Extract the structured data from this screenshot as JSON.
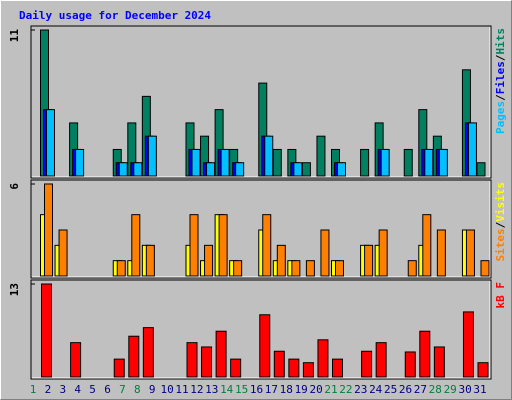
{
  "legend_separator": "/",
  "chart_data": [
    {
      "type": "bar",
      "title": "Daily usage for December 2024",
      "ylim": [
        0,
        11
      ],
      "yticks": [
        11
      ],
      "series": [
        {
          "name": "Hits",
          "color": "#008060",
          "values": [
            11,
            0,
            4,
            0,
            0,
            2,
            4,
            6,
            0,
            0,
            4,
            3,
            5,
            2,
            0,
            7,
            2,
            2,
            1,
            3,
            2,
            0,
            2,
            4,
            0,
            2,
            5,
            3,
            0,
            8,
            1
          ]
        },
        {
          "name": "Files",
          "color": "#0000ff",
          "values": [
            5,
            0,
            2,
            0,
            0,
            1,
            1,
            3,
            0,
            0,
            2,
            1,
            2,
            1,
            0,
            3,
            0,
            1,
            0,
            0,
            1,
            0,
            0,
            2,
            0,
            0,
            2,
            2,
            0,
            4,
            0
          ]
        },
        {
          "name": "Pages",
          "color": "#00c0ff",
          "values": [
            5,
            0,
            2,
            0,
            0,
            1,
            1,
            3,
            0,
            0,
            2,
            1,
            2,
            1,
            0,
            3,
            0,
            1,
            0,
            0,
            1,
            0,
            0,
            2,
            0,
            0,
            2,
            2,
            0,
            4,
            0
          ]
        }
      ]
    },
    {
      "type": "bar",
      "ylim": [
        0,
        6
      ],
      "yticks": [
        6
      ],
      "series": [
        {
          "name": "Visits",
          "color": "#ffff00",
          "values": [
            4,
            2,
            0,
            0,
            0,
            1,
            1,
            2,
            0,
            0,
            2,
            1,
            4,
            1,
            0,
            3,
            1,
            1,
            0,
            0,
            1,
            0,
            2,
            2,
            0,
            0,
            2,
            0,
            0,
            3,
            0
          ]
        },
        {
          "name": "Sites",
          "color": "#ff8000",
          "values": [
            6,
            3,
            0,
            0,
            0,
            1,
            4,
            2,
            0,
            0,
            4,
            2,
            4,
            1,
            0,
            4,
            2,
            1,
            1,
            3,
            1,
            0,
            2,
            3,
            0,
            1,
            4,
            3,
            0,
            3,
            1
          ]
        }
      ]
    },
    {
      "type": "bar",
      "ylim": [
        0,
        13
      ],
      "yticks": [
        13
      ],
      "categories": [
        "1",
        "2",
        "3",
        "4",
        "5",
        "6",
        "7",
        "8",
        "9",
        "10",
        "11",
        "12",
        "13",
        "14",
        "15",
        "16",
        "17",
        "18",
        "19",
        "20",
        "21",
        "22",
        "23",
        "24",
        "25",
        "26",
        "27",
        "28",
        "29",
        "30",
        "31"
      ],
      "x_label_colors": [
        "#008040",
        "#000080",
        "#000080",
        "#000080",
        "#000080",
        "#000080",
        "#008040",
        "#008040",
        "#000080",
        "#000080",
        "#000080",
        "#000080",
        "#000080",
        "#008040",
        "#008040",
        "#000080",
        "#000080",
        "#000080",
        "#000080",
        "#000080",
        "#008040",
        "#008040",
        "#000080",
        "#000080",
        "#000080",
        "#000080",
        "#000080",
        "#008040",
        "#008040",
        "#000080",
        "#000080"
      ],
      "series": [
        {
          "name": "kB F",
          "color": "#ff0000",
          "values": [
            13,
            0,
            4.8,
            0,
            0,
            2.5,
            5.7,
            6.9,
            0,
            0,
            4.8,
            4.2,
            6.4,
            2.5,
            0,
            8.7,
            3.6,
            2.5,
            2,
            5.2,
            2.5,
            0,
            3.6,
            4.8,
            0,
            3.5,
            6.4,
            4.2,
            0,
            9.1,
            2
          ]
        }
      ]
    }
  ]
}
